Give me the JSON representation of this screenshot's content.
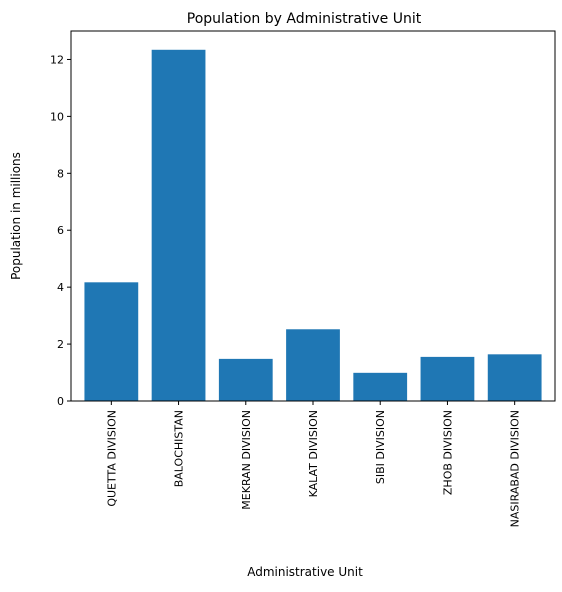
{
  "chart_data": {
    "type": "bar",
    "title": "Population by Administrative Unit",
    "xlabel": "Administrative Unit",
    "ylabel": "Population in millions",
    "categories": [
      "QUETTA DIVISION",
      "BALOCHISTAN",
      "MEKRAN DIVISION",
      "KALAT DIVISION",
      "SIBI DIVISION",
      "ZHOB DIVISION",
      "NASIRABAD DIVISION"
    ],
    "values": [
      4.17,
      12.34,
      1.48,
      2.52,
      0.99,
      1.55,
      1.64
    ],
    "ylim": [
      0,
      13
    ],
    "yticks": [
      0,
      2,
      4,
      6,
      8,
      10,
      12
    ],
    "grid": false,
    "bar_color": "#1f77b4"
  }
}
